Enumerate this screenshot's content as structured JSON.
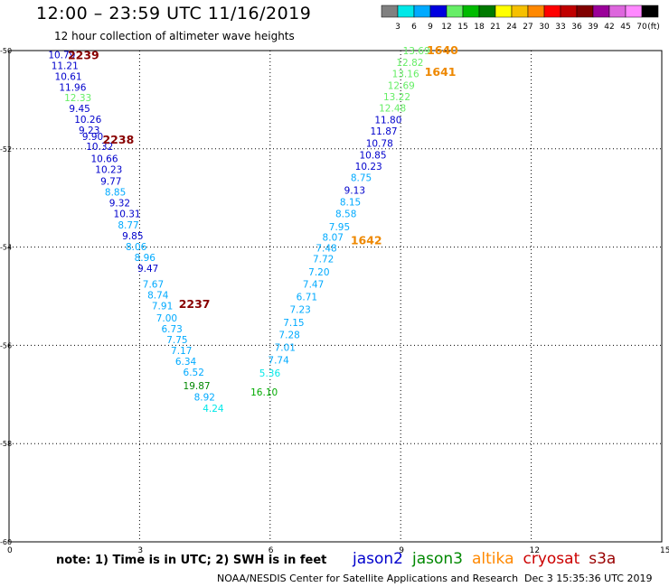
{
  "title": "12:00 – 23:59 UTC 11/16/2019",
  "subtitle": "12 hour collection of altimeter wave heights",
  "color_scale": {
    "labels": [
      "3",
      "6",
      "9",
      "12",
      "15",
      "18",
      "21",
      "24",
      "27",
      "30",
      "33",
      "36",
      "39",
      "42",
      "45",
      "70",
      "(ft)"
    ],
    "colors": [
      "#808080",
      "#00e8e8",
      "#00aaff",
      "#0000e0",
      "#66ee66",
      "#00bb00",
      "#007a00",
      "#ffff00",
      "#f6c000",
      "#ff8800",
      "#ff0000",
      "#c00000",
      "#800000",
      "#9a0099",
      "#dd66dd",
      "#ff88ff",
      "#000000"
    ]
  },
  "axes": {
    "x_ticks": [
      "0",
      "3",
      "6",
      "9",
      "12",
      "15"
    ],
    "y_ticks": [
      "-50",
      "-52",
      "-54",
      "-56",
      "-58",
      "-60"
    ]
  },
  "chart_data": {
    "type": "scatter",
    "xlim": [
      0,
      15
    ],
    "ylim": [
      -60,
      -50
    ],
    "grid": true,
    "points": [
      {
        "x": 0.9,
        "y": -50.08,
        "v": "10.79",
        "c": "#0000cc"
      },
      {
        "x": 0.97,
        "y": -50.3,
        "v": "11.21",
        "c": "#0000cc"
      },
      {
        "x": 1.05,
        "y": -50.52,
        "v": "10.61",
        "c": "#0000cc"
      },
      {
        "x": 1.15,
        "y": -50.74,
        "v": "11.96",
        "c": "#0000cc"
      },
      {
        "x": 1.27,
        "y": -50.96,
        "v": "12.33",
        "c": "#66ee66"
      },
      {
        "x": 1.38,
        "y": -51.18,
        "v": "9.45",
        "c": "#0000cc"
      },
      {
        "x": 1.5,
        "y": -51.4,
        "v": "10.26",
        "c": "#0000cc"
      },
      {
        "x": 1.6,
        "y": -51.62,
        "v": "9.23",
        "c": "#0000cc"
      },
      {
        "x": 1.68,
        "y": -51.75,
        "v": "9.90",
        "c": "#0000cc"
      },
      {
        "x": 1.77,
        "y": -51.95,
        "v": "10.32",
        "c": "#0000cc"
      },
      {
        "x": 1.88,
        "y": -52.2,
        "v": "10.66",
        "c": "#0000cc"
      },
      {
        "x": 1.98,
        "y": -52.42,
        "v": "10.23",
        "c": "#0000cc"
      },
      {
        "x": 2.1,
        "y": -52.66,
        "v": "9.77",
        "c": "#0000cc"
      },
      {
        "x": 2.2,
        "y": -52.88,
        "v": "8.85",
        "c": "#00aaff"
      },
      {
        "x": 2.3,
        "y": -53.1,
        "v": "9.32",
        "c": "#0000cc"
      },
      {
        "x": 2.4,
        "y": -53.32,
        "v": "10.31",
        "c": "#0000cc"
      },
      {
        "x": 2.5,
        "y": -53.55,
        "v": "8.77",
        "c": "#00aaff"
      },
      {
        "x": 2.6,
        "y": -53.77,
        "v": "9.85",
        "c": "#0000cc"
      },
      {
        "x": 2.68,
        "y": -53.99,
        "v": "8.06",
        "c": "#00aaff"
      },
      {
        "x": 2.88,
        "y": -54.21,
        "v": "8.96",
        "c": "#00aaff"
      },
      {
        "x": 2.95,
        "y": -54.43,
        "v": "9.47",
        "c": "#0000cc"
      },
      {
        "x": 3.07,
        "y": -54.75,
        "v": "7.67",
        "c": "#00aaff"
      },
      {
        "x": 3.18,
        "y": -54.97,
        "v": "8.74",
        "c": "#00aaff"
      },
      {
        "x": 3.28,
        "y": -55.19,
        "v": "7.91",
        "c": "#00aaff"
      },
      {
        "x": 3.38,
        "y": -55.44,
        "v": "7.00",
        "c": "#00aaff"
      },
      {
        "x": 3.5,
        "y": -55.66,
        "v": "6.73",
        "c": "#00aaff"
      },
      {
        "x": 3.62,
        "y": -55.88,
        "v": "7.75",
        "c": "#00aaff"
      },
      {
        "x": 3.72,
        "y": -56.1,
        "v": "7.17",
        "c": "#00aaff"
      },
      {
        "x": 3.82,
        "y": -56.32,
        "v": "6.34",
        "c": "#00aaff"
      },
      {
        "x": 4.0,
        "y": -56.54,
        "v": "6.52",
        "c": "#00aaff"
      },
      {
        "x": 4.0,
        "y": -56.82,
        "v": "19.87",
        "c": "#008800"
      },
      {
        "x": 4.25,
        "y": -57.05,
        "v": "8.92",
        "c": "#00aaff"
      },
      {
        "x": 4.45,
        "y": -57.28,
        "v": "4.24",
        "c": "#00e8e8"
      },
      {
        "x": 5.55,
        "y": -56.95,
        "v": "16.10",
        "c": "#00aa00"
      },
      {
        "x": 5.75,
        "y": -56.56,
        "v": "5.36",
        "c": "#00e8e8"
      },
      {
        "x": 5.95,
        "y": -56.3,
        "v": "7.74",
        "c": "#00aaff"
      },
      {
        "x": 6.1,
        "y": -56.04,
        "v": "7.01",
        "c": "#00aaff"
      },
      {
        "x": 6.2,
        "y": -55.78,
        "v": "7.28",
        "c": "#00aaff"
      },
      {
        "x": 6.3,
        "y": -55.53,
        "v": "7.15",
        "c": "#00aaff"
      },
      {
        "x": 6.45,
        "y": -55.27,
        "v": "7.23",
        "c": "#00aaff"
      },
      {
        "x": 6.6,
        "y": -55.01,
        "v": "6.71",
        "c": "#00aaff"
      },
      {
        "x": 6.75,
        "y": -54.75,
        "v": "7.47",
        "c": "#00aaff"
      },
      {
        "x": 6.88,
        "y": -54.5,
        "v": "7.20",
        "c": "#00aaff"
      },
      {
        "x": 6.98,
        "y": -54.24,
        "v": "7.72",
        "c": "#00aaff"
      },
      {
        "x": 7.05,
        "y": -54.02,
        "v": "7.48",
        "c": "#00aaff"
      },
      {
        "x": 7.2,
        "y": -53.8,
        "v": "8.07",
        "c": "#00aaff"
      },
      {
        "x": 7.35,
        "y": -53.58,
        "v": "7.95",
        "c": "#00aaff"
      },
      {
        "x": 7.5,
        "y": -53.32,
        "v": "8.58",
        "c": "#00aaff"
      },
      {
        "x": 7.6,
        "y": -53.08,
        "v": "8.15",
        "c": "#00aaff"
      },
      {
        "x": 7.7,
        "y": -52.84,
        "v": "9.13",
        "c": "#0000cc"
      },
      {
        "x": 7.85,
        "y": -52.58,
        "v": "8.75",
        "c": "#00aaff"
      },
      {
        "x": 7.95,
        "y": -52.35,
        "v": "10.23",
        "c": "#0000cc"
      },
      {
        "x": 8.05,
        "y": -52.12,
        "v": "10.85",
        "c": "#0000cc"
      },
      {
        "x": 8.2,
        "y": -51.88,
        "v": "10.78",
        "c": "#0000cc"
      },
      {
        "x": 8.3,
        "y": -51.64,
        "v": "11.87",
        "c": "#0000cc"
      },
      {
        "x": 8.4,
        "y": -51.41,
        "v": "11.80",
        "c": "#0000cc"
      },
      {
        "x": 8.5,
        "y": -51.17,
        "v": "12.48",
        "c": "#66ee66"
      },
      {
        "x": 8.6,
        "y": -50.94,
        "v": "13.22",
        "c": "#66ee66"
      },
      {
        "x": 8.7,
        "y": -50.71,
        "v": "12.69",
        "c": "#66ee66"
      },
      {
        "x": 8.8,
        "y": -50.47,
        "v": "13.16",
        "c": "#66ee66"
      },
      {
        "x": 8.9,
        "y": -50.24,
        "v": "12.82",
        "c": "#66ee66"
      },
      {
        "x": 9.05,
        "y": -50.0,
        "v": "13.69",
        "c": "#66ee66"
      }
    ],
    "pass_labels": [
      {
        "text": "2239",
        "x": 1.35,
        "y": -50.08,
        "c": "#880000"
      },
      {
        "text": "2238",
        "x": 2.15,
        "y": -51.8,
        "c": "#880000"
      },
      {
        "text": "2237",
        "x": 3.9,
        "y": -55.15,
        "c": "#880000"
      },
      {
        "text": "1640",
        "x": 9.6,
        "y": -49.98,
        "c": "#ee8800"
      },
      {
        "text": "1641",
        "x": 9.55,
        "y": -50.42,
        "c": "#ee8800"
      },
      {
        "text": "1642",
        "x": 7.85,
        "y": -53.85,
        "c": "#ee8800"
      }
    ]
  },
  "note": "note: 1) Time is in UTC; 2) SWH is in feet",
  "missions": [
    {
      "name": "jason2",
      "color": "#0000cc"
    },
    {
      "name": "jason3",
      "color": "#008800"
    },
    {
      "name": "altika",
      "color": "#ff8800"
    },
    {
      "name": "cryosat",
      "color": "#cc0000"
    },
    {
      "name": "s3a",
      "color": "#990000"
    }
  ],
  "credit": "NOAA/NESDIS Center for Satellite Applications and Research",
  "timestamp": "Dec  3 15:35:36 UTC 2019"
}
